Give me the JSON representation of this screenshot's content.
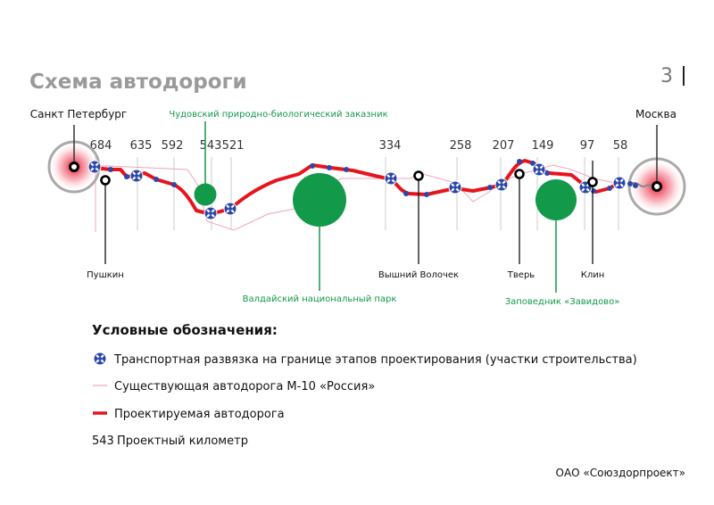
{
  "header": {
    "title": "Схема автодороги",
    "page_number": "3"
  },
  "cities": {
    "start": "Санкт Петербург",
    "end": "Москва"
  },
  "kilometers": [
    "684",
    "635",
    "592",
    "543",
    "521",
    "334",
    "258",
    "207",
    "149",
    "97",
    "58"
  ],
  "towns": [
    "Пушкин",
    "Вышний Волочек",
    "Тверь",
    "Клин"
  ],
  "reserves": {
    "chudovo": "Чудовский природно-биологический заказник",
    "valdai": "Валдайский национальный парк",
    "zavidovo": "Заповедник «Завидово»"
  },
  "legend": {
    "title": "Условные обозначения:",
    "interchange": "Транспортная развязка на границе этапов проектирования (участки строительства)",
    "existing_road": "Существующая автодорога М-10 «Россия»",
    "planned_road": "Проектируемая автодорога",
    "km_sample": "543",
    "km_label": "Проектный километр"
  },
  "footer": {
    "company": "ОАО «Союздорпроект»"
  },
  "colors": {
    "road": "#e8141b",
    "existing": "#e9a7b8",
    "interchange": "#2c47a8",
    "reserve": "#12994a",
    "title": "#9a9a9a"
  }
}
